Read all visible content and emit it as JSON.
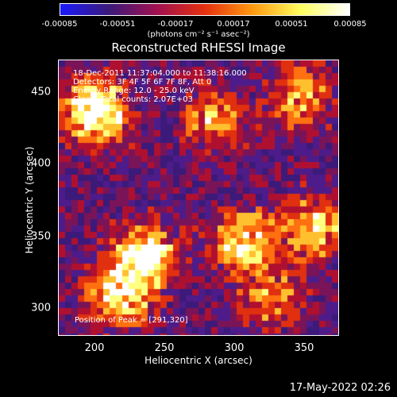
{
  "colorbar": {
    "ticks": [
      "-0.00085",
      "-0.00051",
      "-0.00017",
      "0.00017",
      "0.00051",
      "0.00085"
    ],
    "unit_label": "(photons cm⁻² s⁻¹ asec⁻²)",
    "colors": [
      "#1a1aff",
      "#3b1a7a",
      "#a01050",
      "#e53010",
      "#ff9a10",
      "#ffff60",
      "#ffffff"
    ]
  },
  "plot": {
    "title": "Reconstructed RHESSI Image",
    "info_lines": [
      "18-Dec-2011 11:37:04.000 to 11:38:16.000",
      "Detectors: 3F 4F 5F 6F 7F 8F, Att 0",
      "Energy Range: 12.0 - 25.0 keV",
      "Clean.    Total counts: 2.07E+03"
    ],
    "peak_label": "Position of Peak = [291,320]",
    "xlabel": "Heliocentric X (arcsec)",
    "ylabel": "Heliocentric Y (arcsec)",
    "xticks": [
      "200",
      "250",
      "300",
      "350"
    ],
    "yticks": [
      "450",
      "400",
      "350",
      "300"
    ]
  },
  "chart_data": {
    "type": "heatmap",
    "title": "Reconstructed RHESSI Image",
    "xlabel": "Heliocentric X (arcsec)",
    "ylabel": "Heliocentric Y (arcsec)",
    "xlim": [
      180,
      370
    ],
    "ylim": [
      280,
      470
    ],
    "colorbar_range": [
      -0.00085,
      0.00085
    ],
    "colorbar_unit": "(photons cm⁻² s⁻¹ asec⁻²)",
    "peak_position": [
      291,
      320
    ]
  },
  "footer": {
    "timestamp": "17-May-2022 02:26"
  }
}
